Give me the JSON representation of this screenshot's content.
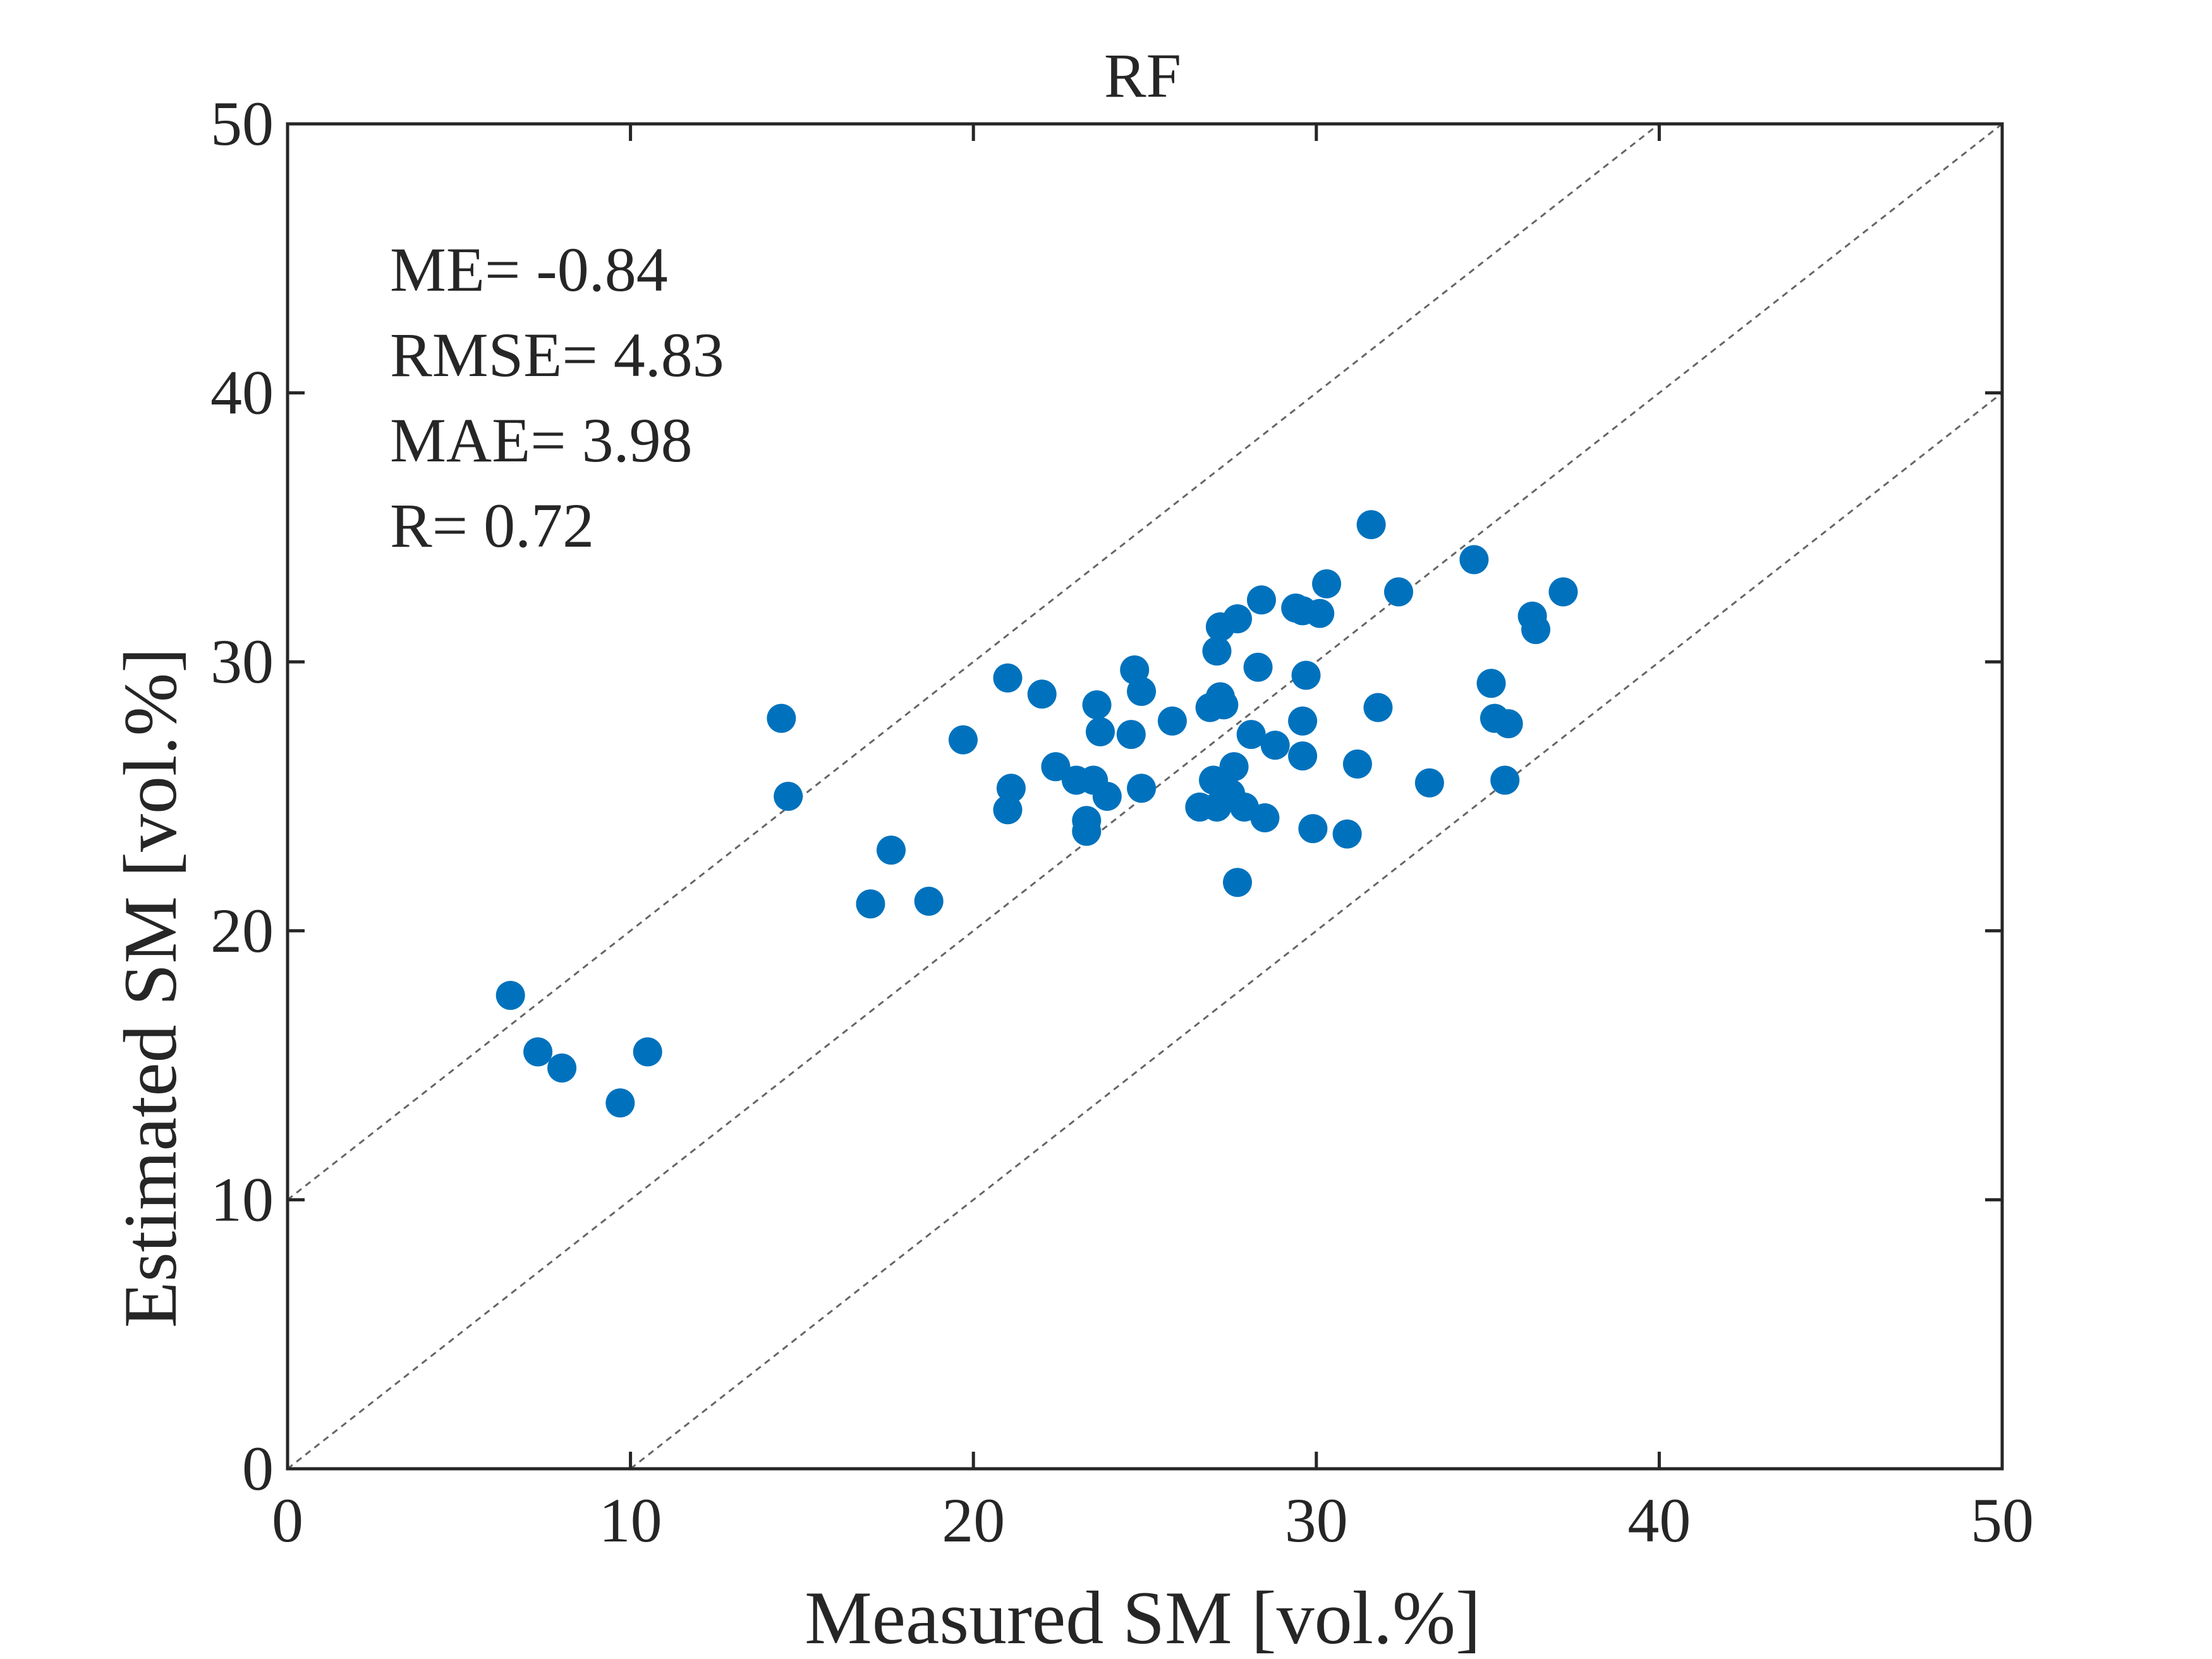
{
  "chart_data": {
    "type": "scatter",
    "title": "RF",
    "xlabel": "Measured SM [vol.%]",
    "ylabel": "Estimated SM [vol.%]",
    "xlim": [
      0,
      50
    ],
    "ylim": [
      0,
      50
    ],
    "xticks": [
      "0",
      "10",
      "20",
      "30",
      "40",
      "50"
    ],
    "yticks": [
      "0",
      "10",
      "20",
      "30",
      "40",
      "50"
    ],
    "grid": false,
    "reference_lines": [
      {
        "label": "1:1",
        "intercept": 0
      },
      {
        "label": "+10",
        "intercept": 10
      },
      {
        "label": "-10",
        "intercept": -10
      }
    ],
    "annotations": [
      "ME= -0.84",
      "RMSE= 4.83",
      "MAE= 3.98",
      "R= 0.72"
    ],
    "marker_color": "#0072BD",
    "points": [
      [
        6.5,
        17.6
      ],
      [
        7.3,
        15.5
      ],
      [
        8.0,
        14.9
      ],
      [
        9.7,
        13.6
      ],
      [
        10.5,
        15.5
      ],
      [
        14.4,
        27.9
      ],
      [
        14.6,
        25.0
      ],
      [
        17.0,
        21.0
      ],
      [
        17.6,
        23.0
      ],
      [
        18.7,
        21.1
      ],
      [
        19.7,
        27.1
      ],
      [
        21.0,
        29.4
      ],
      [
        21.0,
        24.5
      ],
      [
        21.1,
        25.3
      ],
      [
        22.0,
        28.8
      ],
      [
        22.4,
        26.1
      ],
      [
        23.0,
        25.6
      ],
      [
        23.3,
        24.1
      ],
      [
        23.3,
        23.7
      ],
      [
        23.5,
        25.6
      ],
      [
        23.6,
        28.4
      ],
      [
        23.7,
        27.4
      ],
      [
        23.9,
        25.0
      ],
      [
        24.6,
        27.3
      ],
      [
        24.7,
        29.7
      ],
      [
        24.9,
        28.9
      ],
      [
        24.9,
        25.3
      ],
      [
        25.8,
        27.8
      ],
      [
        26.6,
        24.6
      ],
      [
        26.9,
        28.3
      ],
      [
        27.0,
        25.6
      ],
      [
        27.1,
        24.6
      ],
      [
        27.1,
        30.4
      ],
      [
        27.2,
        31.3
      ],
      [
        27.2,
        28.7
      ],
      [
        27.3,
        28.4
      ],
      [
        27.5,
        25.1
      ],
      [
        27.6,
        26.1
      ],
      [
        27.7,
        21.8
      ],
      [
        27.7,
        31.6
      ],
      [
        27.9,
        24.6
      ],
      [
        28.1,
        27.3
      ],
      [
        28.3,
        29.8
      ],
      [
        28.4,
        32.3
      ],
      [
        28.5,
        24.2
      ],
      [
        28.8,
        26.9
      ],
      [
        29.4,
        32.0
      ],
      [
        29.6,
        31.9
      ],
      [
        29.6,
        26.5
      ],
      [
        29.6,
        27.8
      ],
      [
        29.7,
        29.5
      ],
      [
        29.9,
        23.8
      ],
      [
        30.1,
        31.8
      ],
      [
        30.3,
        32.9
      ],
      [
        30.9,
        23.6
      ],
      [
        31.2,
        26.2
      ],
      [
        31.6,
        35.1
      ],
      [
        31.8,
        28.3
      ],
      [
        32.4,
        32.6
      ],
      [
        33.3,
        25.5
      ],
      [
        34.6,
        33.8
      ],
      [
        35.1,
        29.2
      ],
      [
        35.2,
        27.9
      ],
      [
        35.5,
        25.6
      ],
      [
        35.6,
        27.7
      ],
      [
        36.3,
        31.7
      ],
      [
        36.4,
        31.2
      ],
      [
        37.2,
        32.6
      ]
    ]
  }
}
